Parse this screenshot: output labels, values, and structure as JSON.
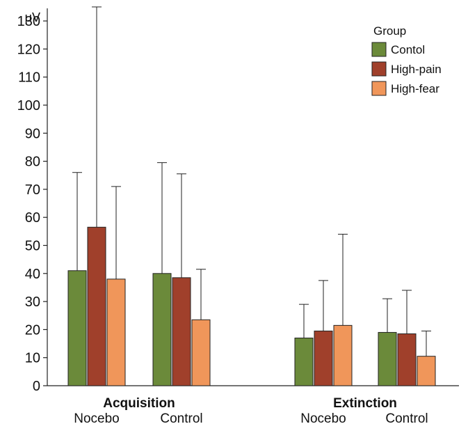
{
  "chart_data": {
    "type": "bar",
    "ylabel": "μV",
    "ylim": [
      0,
      135
    ],
    "yticks": [
      0,
      10,
      20,
      30,
      40,
      50,
      60,
      70,
      80,
      90,
      100,
      110,
      120,
      130
    ],
    "groups": [
      {
        "label": "Acquisition",
        "conditions": [
          "Nocebo",
          "Control"
        ]
      },
      {
        "label": "Extinction",
        "conditions": [
          "Nocebo",
          "Control"
        ]
      }
    ],
    "legend": {
      "title": "Group",
      "position": "top-right"
    },
    "series": [
      {
        "name": "Contol",
        "color": "#6b8a3a",
        "values": [
          41,
          40,
          17,
          19
        ],
        "errors": [
          76,
          79.5,
          29,
          31
        ]
      },
      {
        "name": "High-pain",
        "color": "#a0402b",
        "values": [
          56.5,
          38.5,
          19.5,
          18.5
        ],
        "errors": [
          135,
          75.5,
          37.5,
          34
        ]
      },
      {
        "name": "High-fear",
        "color": "#f0965a",
        "values": [
          38,
          23.5,
          21.5,
          10.5
        ],
        "errors": [
          71,
          41.5,
          54,
          19.5
        ]
      }
    ]
  }
}
